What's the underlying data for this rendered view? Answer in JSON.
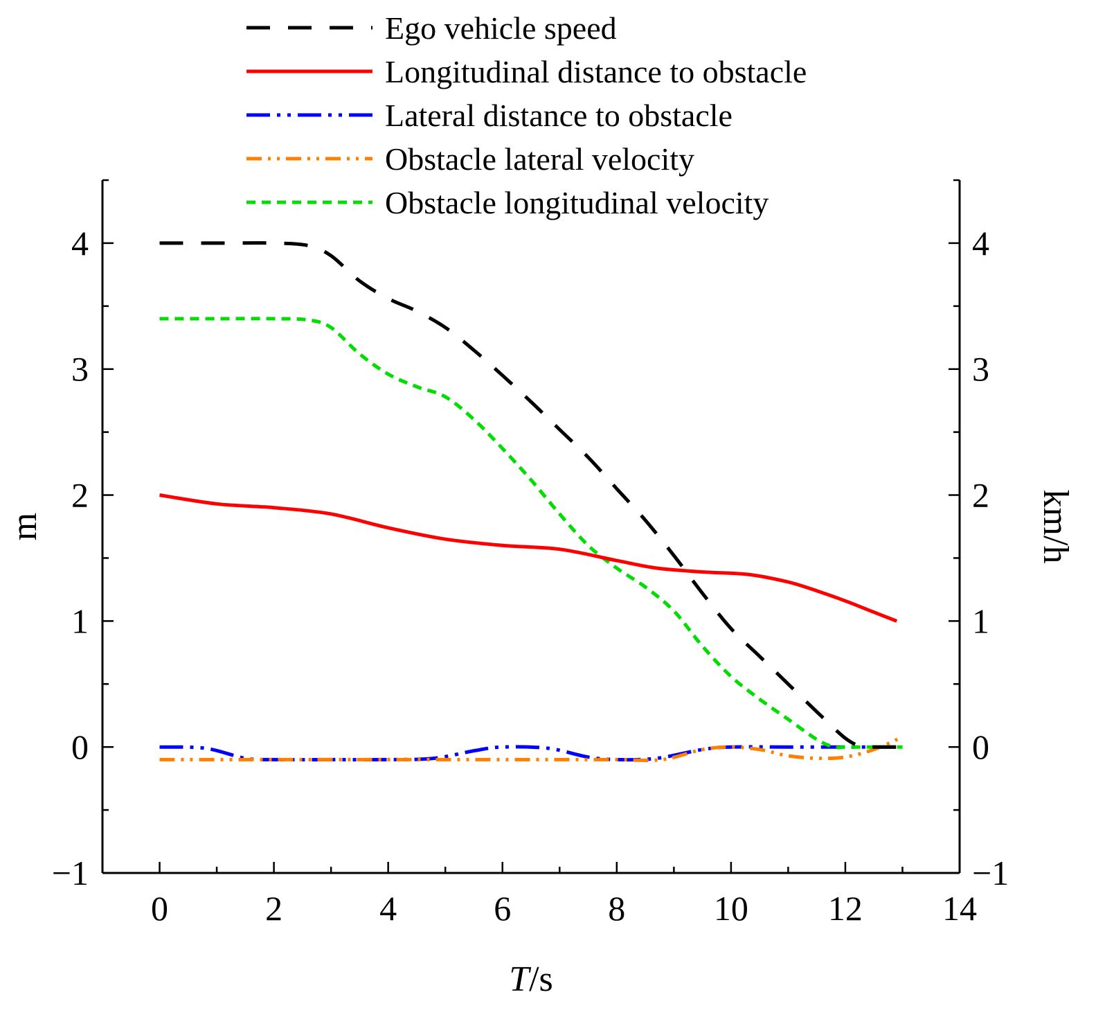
{
  "chart_data": {
    "type": "line",
    "title": "",
    "xlabel_italic": "T",
    "xlabel_unit": "/s",
    "ylabel": "m",
    "y2label": "km/h",
    "xlim": [
      -1,
      14
    ],
    "ylim": [
      -1,
      4.5
    ],
    "y2lim": [
      -1,
      4.5
    ],
    "x_ticks": [
      0,
      2,
      4,
      6,
      8,
      10,
      12,
      14
    ],
    "y_ticks": [
      -1,
      0,
      1,
      2,
      3,
      4
    ],
    "x_tick_labels": [
      "0",
      "2",
      "4",
      "6",
      "8",
      "10",
      "12",
      "14"
    ],
    "y_tick_labels": [
      "−1",
      "0",
      "1",
      "2",
      "3",
      "4"
    ],
    "y2_tick_labels": [
      "−1",
      "0",
      "1",
      "2",
      "3",
      "4"
    ],
    "grid": false,
    "legend_position": "top",
    "series": [
      {
        "name": "Ego vehicle speed",
        "color": "#000000",
        "dash": "dashed",
        "x": [
          0,
          1,
          2,
          2.6,
          3,
          3.5,
          4,
          4.5,
          5,
          5.5,
          6,
          6.5,
          7,
          7.5,
          8,
          8.5,
          9,
          9.5,
          10,
          10.5,
          11,
          11.5,
          12,
          12.3,
          12.5,
          13
        ],
        "y": [
          4,
          4,
          4,
          3.98,
          3.9,
          3.7,
          3.56,
          3.46,
          3.33,
          3.15,
          2.95,
          2.74,
          2.52,
          2.3,
          2.05,
          1.8,
          1.52,
          1.22,
          0.94,
          0.72,
          0.5,
          0.28,
          0.07,
          0,
          0,
          0
        ]
      },
      {
        "name": "Longitudinal distance to obstacle",
        "color": "#ff0000",
        "dash": "solid",
        "x": [
          0,
          1,
          2,
          3,
          4,
          5,
          6,
          7,
          8,
          8.7,
          9.5,
          10.3,
          11,
          11.5,
          12,
          12.5,
          12.9
        ],
        "y": [
          2,
          1.93,
          1.9,
          1.85,
          1.74,
          1.65,
          1.6,
          1.57,
          1.48,
          1.42,
          1.39,
          1.37,
          1.31,
          1.24,
          1.16,
          1.07,
          1.0
        ]
      },
      {
        "name": "Lateral distance to obstacle",
        "color": "#0000ff",
        "dash": "dashdotdot",
        "x": [
          0,
          0.8,
          1.5,
          2,
          3,
          4,
          4.8,
          5.5,
          6,
          6.8,
          7.5,
          8,
          8.7,
          9.5,
          10,
          11,
          12,
          13
        ],
        "y": [
          0,
          -0.01,
          -0.09,
          -0.1,
          -0.1,
          -0.1,
          -0.09,
          -0.03,
          0,
          -0.01,
          -0.08,
          -0.1,
          -0.09,
          -0.02,
          0,
          0,
          0,
          0
        ]
      },
      {
        "name": "Obstacle lateral velocity",
        "color": "#ff8000",
        "dash": "dashdotdot-alt",
        "x": [
          0,
          1,
          2,
          3,
          4,
          5,
          6,
          7,
          8,
          8.8,
          9.5,
          10,
          10.5,
          11,
          11.5,
          12,
          12.5,
          13
        ],
        "y": [
          -0.1,
          -0.1,
          -0.1,
          -0.1,
          -0.1,
          -0.1,
          -0.1,
          -0.1,
          -0.1,
          -0.1,
          -0.02,
          0,
          -0.02,
          -0.07,
          -0.09,
          -0.08,
          -0.02,
          0.08
        ]
      },
      {
        "name": "Obstacle longitudinal velocity",
        "color": "#00dd00",
        "dash": "dotted",
        "x": [
          0,
          1,
          2,
          2.6,
          3,
          3.5,
          4,
          4.5,
          5,
          5.5,
          6,
          6.5,
          7,
          7.5,
          8,
          8.5,
          9,
          9.5,
          10,
          10.5,
          11,
          11.5,
          11.8,
          12,
          12.5,
          13
        ],
        "y": [
          3.4,
          3.4,
          3.4,
          3.39,
          3.33,
          3.12,
          2.96,
          2.86,
          2.78,
          2.6,
          2.37,
          2.12,
          1.85,
          1.6,
          1.42,
          1.27,
          1.08,
          0.8,
          0.56,
          0.38,
          0.22,
          0.06,
          0,
          0,
          0,
          0
        ]
      }
    ]
  }
}
